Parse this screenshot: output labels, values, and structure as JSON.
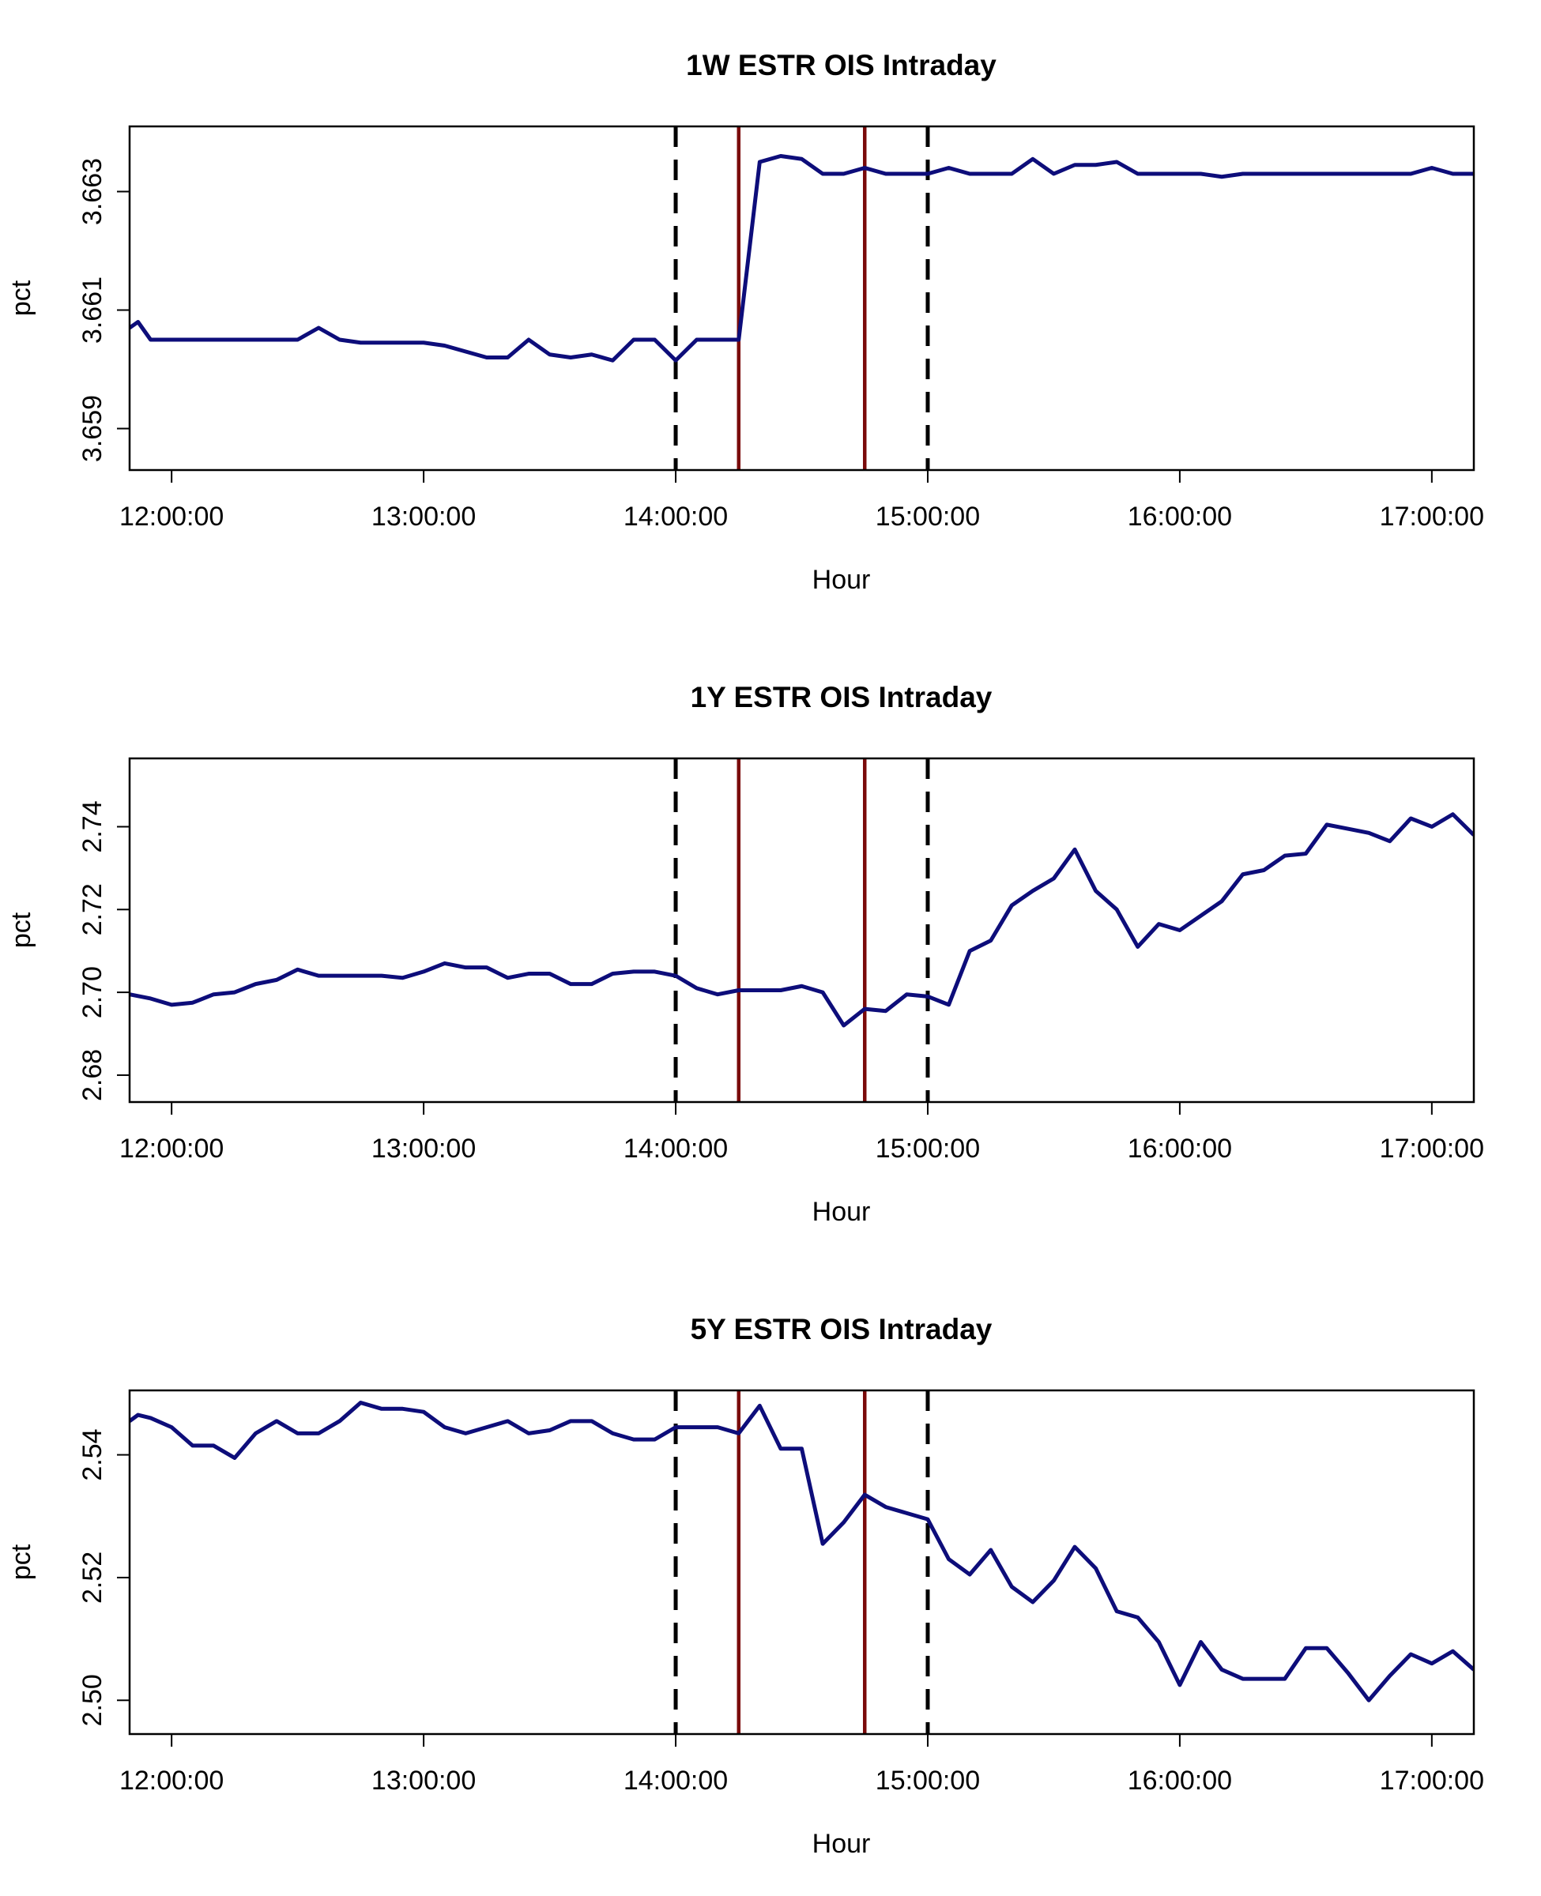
{
  "colors": {
    "series": "#0d0d7a",
    "event_line": "#7a0a0a",
    "window_line": "#000000"
  },
  "chart_data": [
    {
      "type": "line",
      "title": "1W ESTR OIS Intraday",
      "xlabel": "Hour",
      "ylabel": "pct",
      "xlim": [
        "11:50:00",
        "17:10:00"
      ],
      "ylim": [
        3.6583,
        3.6641
      ],
      "x_ticks": [
        "12:00:00",
        "13:00:00",
        "14:00:00",
        "15:00:00",
        "16:00:00",
        "17:00:00"
      ],
      "y_ticks": [
        "3.659",
        "3.661",
        "3.663"
      ],
      "vlines_dashed": [
        "14:00:00",
        "15:00:00"
      ],
      "vlines_solid": [
        "14:15:00",
        "14:45:00"
      ],
      "series": [
        {
          "x": [
            "11:50:00",
            "11:52:00",
            "11:55:00",
            "12:00:00",
            "12:05:00",
            "12:10:00",
            "12:15:00",
            "12:20:00",
            "12:25:00",
            "12:30:00",
            "12:35:00",
            "12:40:00",
            "12:45:00",
            "12:50:00",
            "12:55:00",
            "13:00:00",
            "13:05:00",
            "13:10:00",
            "13:15:00",
            "13:20:00",
            "13:25:00",
            "13:30:00",
            "13:35:00",
            "13:40:00",
            "13:45:00",
            "13:50:00",
            "13:55:00",
            "14:00:00",
            "14:05:00",
            "14:10:00",
            "14:15:00",
            "14:20:00",
            "14:25:00",
            "14:30:00",
            "14:35:00",
            "14:40:00",
            "14:45:00",
            "14:50:00",
            "14:55:00",
            "15:00:00",
            "15:05:00",
            "15:10:00",
            "15:15:00",
            "15:20:00",
            "15:25:00",
            "15:30:00",
            "15:35:00",
            "15:40:00",
            "15:45:00",
            "15:50:00",
            "15:55:00",
            "16:00:00",
            "16:05:00",
            "16:10:00",
            "16:15:00",
            "16:20:00",
            "16:25:00",
            "16:30:00",
            "16:35:00",
            "16:40:00",
            "16:45:00",
            "16:50:00",
            "16:55:00",
            "17:00:00",
            "17:05:00",
            "17:10:00"
          ],
          "values": [
            3.6607,
            3.6608,
            3.6605,
            3.6605,
            3.6605,
            3.6605,
            3.6605,
            3.6605,
            3.6605,
            3.6605,
            3.6607,
            3.6605,
            3.66045,
            3.66045,
            3.66045,
            3.66045,
            3.6604,
            3.6603,
            3.6602,
            3.6602,
            3.6605,
            3.66025,
            3.6602,
            3.66025,
            3.66015,
            3.6605,
            3.6605,
            3.66015,
            3.6605,
            3.6605,
            3.6605,
            3.6635,
            3.6636,
            3.66355,
            3.6633,
            3.6633,
            3.6634,
            3.6633,
            3.6633,
            3.6633,
            3.6634,
            3.6633,
            3.6633,
            3.6633,
            3.66355,
            3.6633,
            3.66345,
            3.66345,
            3.6635,
            3.6633,
            3.6633,
            3.6633,
            3.6633,
            3.66325,
            3.6633,
            3.6633,
            3.6633,
            3.6633,
            3.6633,
            3.6633,
            3.6633,
            3.6633,
            3.6633,
            3.6634,
            3.6633,
            3.6633
          ]
        }
      ]
    },
    {
      "type": "line",
      "title": "1Y ESTR OIS Intraday",
      "xlabel": "Hour",
      "ylabel": "pct",
      "xlim": [
        "11:50:00",
        "17:10:00"
      ],
      "ylim": [
        2.6735,
        2.7565
      ],
      "x_ticks": [
        "12:00:00",
        "13:00:00",
        "14:00:00",
        "15:00:00",
        "16:00:00",
        "17:00:00"
      ],
      "y_ticks": [
        "2.68",
        "2.70",
        "2.72",
        "2.74"
      ],
      "vlines_dashed": [
        "14:00:00",
        "15:00:00"
      ],
      "vlines_solid": [
        "14:15:00",
        "14:45:00"
      ],
      "series": [
        {
          "x": [
            "11:50:00",
            "11:55:00",
            "12:00:00",
            "12:05:00",
            "12:10:00",
            "12:15:00",
            "12:20:00",
            "12:25:00",
            "12:30:00",
            "12:35:00",
            "12:40:00",
            "12:45:00",
            "12:50:00",
            "12:55:00",
            "13:00:00",
            "13:05:00",
            "13:10:00",
            "13:15:00",
            "13:20:00",
            "13:25:00",
            "13:30:00",
            "13:35:00",
            "13:40:00",
            "13:45:00",
            "13:50:00",
            "13:55:00",
            "14:00:00",
            "14:05:00",
            "14:10:00",
            "14:15:00",
            "14:20:00",
            "14:25:00",
            "14:30:00",
            "14:35:00",
            "14:40:00",
            "14:45:00",
            "14:50:00",
            "14:55:00",
            "15:00:00",
            "15:05:00",
            "15:10:00",
            "15:15:00",
            "15:20:00",
            "15:25:00",
            "15:30:00",
            "15:35:00",
            "15:40:00",
            "15:45:00",
            "15:50:00",
            "15:55:00",
            "16:00:00",
            "16:05:00",
            "16:10:00",
            "16:15:00",
            "16:20:00",
            "16:25:00",
            "16:30:00",
            "16:35:00",
            "16:40:00",
            "16:45:00",
            "16:50:00",
            "16:55:00",
            "17:00:00",
            "17:05:00",
            "17:10:00"
          ],
          "values": [
            2.6995,
            2.6985,
            2.697,
            2.6975,
            2.6995,
            2.7,
            2.702,
            2.703,
            2.7055,
            2.704,
            2.704,
            2.704,
            2.704,
            2.7035,
            2.705,
            2.707,
            2.706,
            2.706,
            2.7035,
            2.7045,
            2.7045,
            2.702,
            2.702,
            2.7045,
            2.705,
            2.705,
            2.704,
            2.701,
            2.6995,
            2.7005,
            2.7005,
            2.7005,
            2.7015,
            2.7,
            2.692,
            2.696,
            2.6955,
            2.6995,
            2.699,
            2.697,
            2.71,
            2.7125,
            2.721,
            2.7245,
            2.7275,
            2.7345,
            2.7245,
            2.72,
            2.711,
            2.7165,
            2.715,
            2.7185,
            2.722,
            2.7285,
            2.7295,
            2.733,
            2.7335,
            2.7405,
            2.7395,
            2.7385,
            2.7365,
            2.742,
            2.74,
            2.743,
            2.738
          ]
        }
      ]
    },
    {
      "type": "line",
      "title": "5Y ESTR OIS Intraday",
      "xlabel": "Hour",
      "ylabel": "pct",
      "xlim": [
        "11:50:00",
        "17:10:00"
      ],
      "ylim": [
        2.4945,
        2.5505
      ],
      "x_ticks": [
        "12:00:00",
        "13:00:00",
        "14:00:00",
        "15:00:00",
        "16:00:00",
        "17:00:00"
      ],
      "y_ticks": [
        "2.50",
        "2.52",
        "2.54"
      ],
      "vlines_dashed": [
        "14:00:00",
        "15:00:00"
      ],
      "vlines_solid": [
        "14:15:00",
        "14:45:00"
      ],
      "series": [
        {
          "x": [
            "11:50:00",
            "11:52:00",
            "11:55:00",
            "12:00:00",
            "12:05:00",
            "12:10:00",
            "12:15:00",
            "12:20:00",
            "12:25:00",
            "12:30:00",
            "12:35:00",
            "12:40:00",
            "12:45:00",
            "12:50:00",
            "12:55:00",
            "13:00:00",
            "13:05:00",
            "13:10:00",
            "13:15:00",
            "13:20:00",
            "13:25:00",
            "13:30:00",
            "13:35:00",
            "13:40:00",
            "13:45:00",
            "13:50:00",
            "13:55:00",
            "14:00:00",
            "14:05:00",
            "14:10:00",
            "14:15:00",
            "14:20:00",
            "14:25:00",
            "14:30:00",
            "14:35:00",
            "14:40:00",
            "14:45:00",
            "14:50:00",
            "14:55:00",
            "15:00:00",
            "15:05:00",
            "15:10:00",
            "15:15:00",
            "15:20:00",
            "15:25:00",
            "15:30:00",
            "15:35:00",
            "15:40:00",
            "15:45:00",
            "15:50:00",
            "15:55:00",
            "16:00:00",
            "16:05:00",
            "16:10:00",
            "16:15:00",
            "16:20:00",
            "16:25:00",
            "16:30:00",
            "16:35:00",
            "16:40:00",
            "16:45:00",
            "16:50:00",
            "16:55:00",
            "17:00:00",
            "17:05:00",
            "17:10:00"
          ],
          "values": [
            2.5455,
            2.5465,
            2.546,
            2.5445,
            2.5415,
            2.5415,
            2.5395,
            2.5435,
            2.5455,
            2.5435,
            2.5435,
            2.5455,
            2.5485,
            2.5475,
            2.5475,
            2.547,
            2.5445,
            2.5435,
            2.5445,
            2.5455,
            2.5435,
            2.544,
            2.5455,
            2.5455,
            2.5435,
            2.5425,
            2.5425,
            2.5445,
            2.5445,
            2.5445,
            2.5435,
            2.548,
            2.541,
            2.541,
            2.5255,
            2.529,
            2.5335,
            2.5315,
            2.5305,
            2.5295,
            2.523,
            2.5205,
            2.5245,
            2.5185,
            2.516,
            2.5195,
            2.525,
            2.5215,
            2.5145,
            2.5135,
            2.5095,
            2.5025,
            2.5095,
            2.505,
            2.5035,
            2.5035,
            2.5035,
            2.5085,
            2.5085,
            2.5045,
            2.5,
            2.504,
            2.5075,
            2.506,
            2.508,
            2.505
          ]
        }
      ]
    }
  ]
}
